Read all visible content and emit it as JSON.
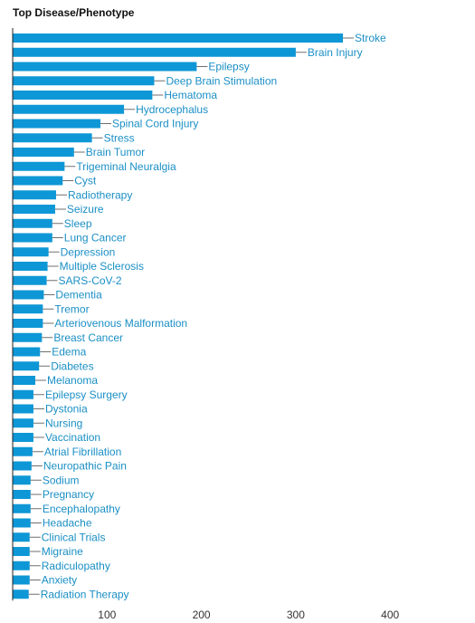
{
  "chart_data": {
    "type": "bar",
    "orientation": "horizontal",
    "title": "Top Disease/Phenotype",
    "xlabel": "",
    "ylabel": "",
    "categories": [
      "Stroke",
      "Brain Injury",
      "Epilepsy",
      "Deep Brain Stimulation",
      "Hematoma",
      "Hydrocephalus",
      "Spinal Cord Injury",
      "Stress",
      "Brain Tumor",
      "Trigeminal Neuralgia",
      "Cyst",
      "Radiotherapy",
      "Seizure",
      "Sleep",
      "Lung Cancer",
      "Depression",
      "Multiple Sclerosis",
      "SARS-CoV-2",
      "Dementia",
      "Tremor",
      "Arteriovenous Malformation",
      "Breast Cancer",
      "Edema",
      "Diabetes",
      "Melanoma",
      "Epilepsy Surgery",
      "Dystonia",
      "Nursing",
      "Vaccination",
      "Atrial Fibrillation",
      "Neuropathic Pain",
      "Sodium",
      "Pregnancy",
      "Encephalopathy",
      "Headache",
      "Clinical Trials",
      "Migraine",
      "Radiculopathy",
      "Anxiety",
      "Radiation Therapy"
    ],
    "values": [
      350,
      300,
      195,
      150,
      148,
      118,
      93,
      84,
      65,
      55,
      53,
      46,
      45,
      42,
      42,
      38,
      37,
      36,
      33,
      32,
      32,
      31,
      29,
      28,
      24,
      22,
      22,
      22,
      22,
      21,
      20,
      19,
      19,
      19,
      19,
      18,
      18,
      18,
      18,
      17
    ],
    "xlim": [
      0,
      465
    ],
    "xticks": [
      100,
      200,
      300,
      400
    ],
    "grid": false,
    "legend": "none",
    "bar_color": "#0e97d6",
    "label_color": "#1a8fc5",
    "connector_color": "#6f6f6f",
    "axis_color": "#222222"
  }
}
